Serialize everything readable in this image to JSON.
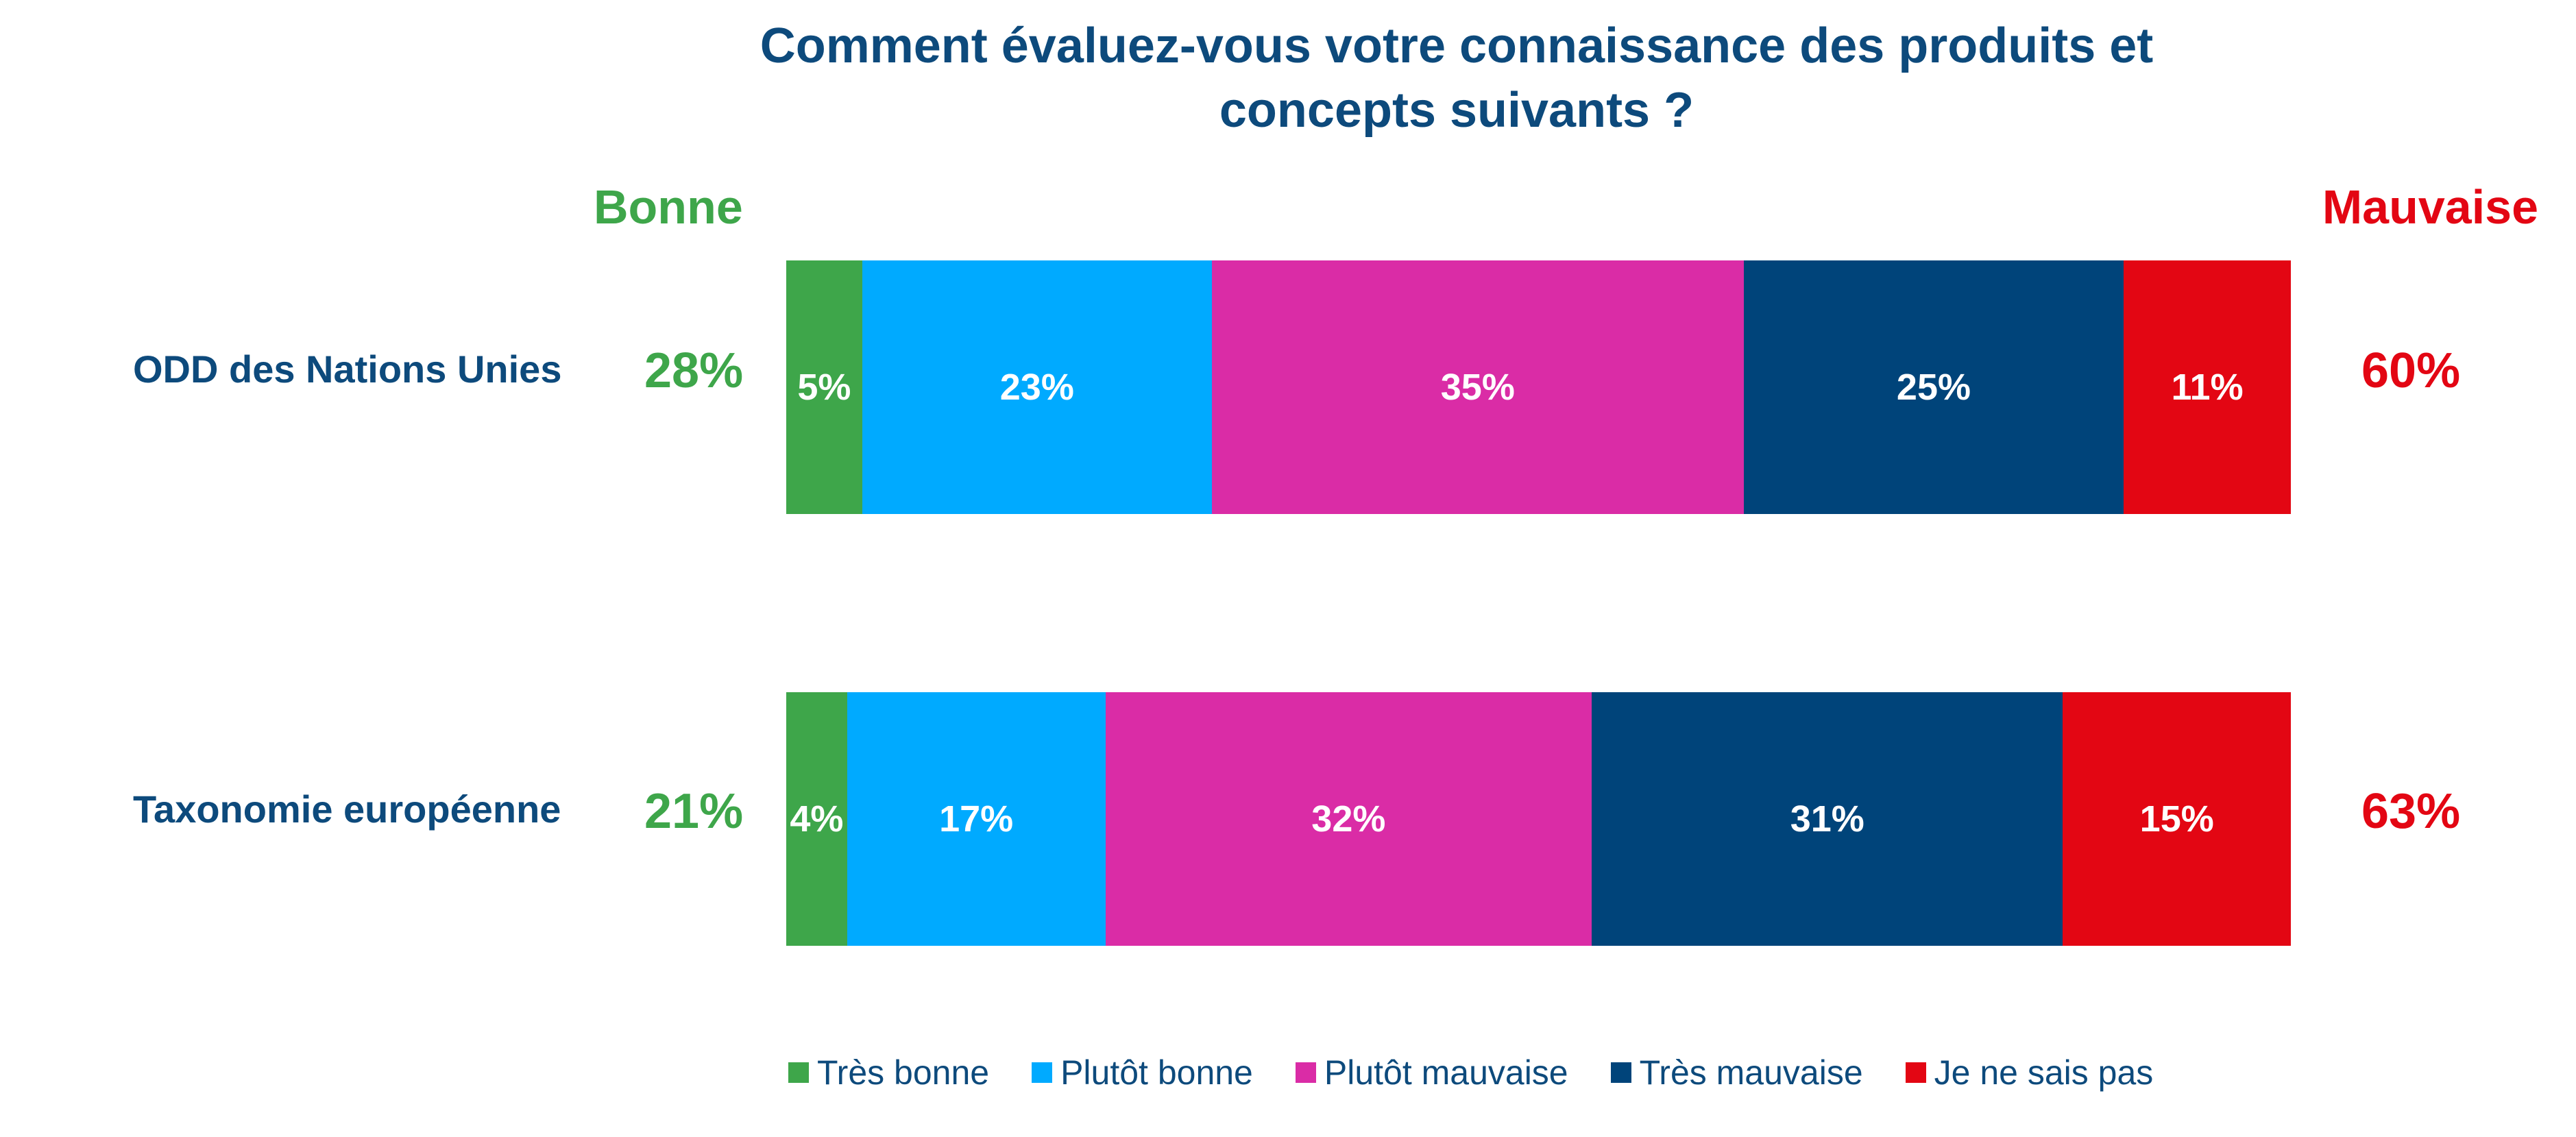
{
  "chart_data": {
    "type": "bar",
    "orientation": "horizontal",
    "stacked": true,
    "title_line1": "Comment évaluez-vous votre connaissance des produits et",
    "title_line2": "concepts suivants ?",
    "good_heading": "Bonne",
    "bad_heading": "Mauvaise",
    "categories": [
      "ODD des Nations Unies",
      "Taxonomie européenne"
    ],
    "good_totals": [
      "28%",
      "21%"
    ],
    "bad_totals": [
      "60%",
      "63%"
    ],
    "xlim": [
      0,
      100
    ],
    "series": [
      {
        "name": "Très bonne",
        "color": "#3ea64a",
        "values": [
          5,
          4
        ]
      },
      {
        "name": "Plutôt bonne",
        "color": "#00aaff",
        "values": [
          23,
          17
        ]
      },
      {
        "name": "Plutôt mauvaise",
        "color": "#da2ca6",
        "values": [
          35,
          32
        ]
      },
      {
        "name": "Très mauvaise",
        "color": "#00447a",
        "values": [
          25,
          31
        ]
      },
      {
        "name": "Je ne sais pas",
        "color": "#e30613",
        "values": [
          11,
          15
        ]
      }
    ],
    "legend_position": "bottom",
    "grid": false
  }
}
